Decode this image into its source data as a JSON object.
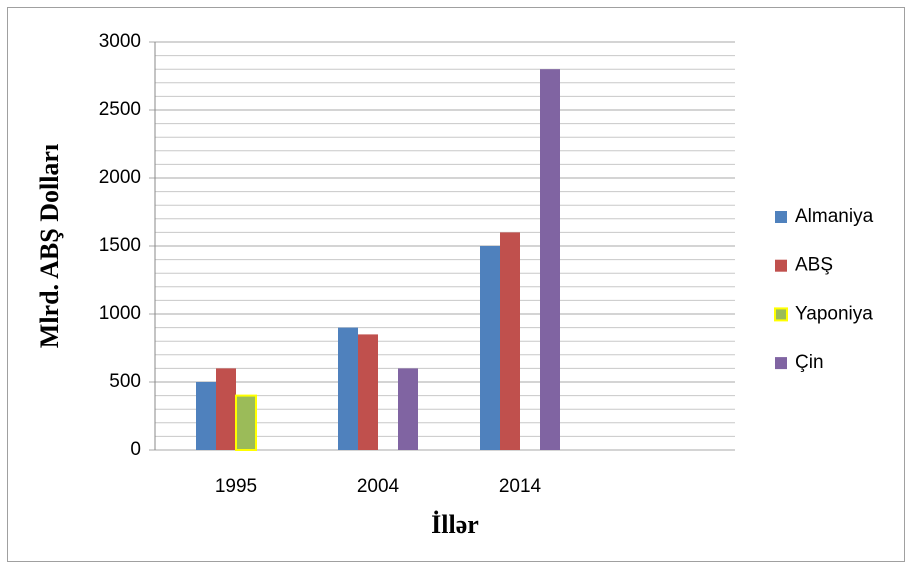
{
  "chart_data": {
    "type": "bar",
    "categories": [
      "1995",
      "2004",
      "2014",
      null
    ],
    "series": [
      {
        "name": "Almaniya",
        "color": "#4f81bd",
        "values": [
          500,
          900,
          1500,
          null
        ]
      },
      {
        "name": "ABŞ",
        "color": "#c0504d",
        "values": [
          600,
          850,
          1600,
          null
        ]
      },
      {
        "name": "Yaponiya",
        "color": "#9bbb59",
        "edgecolor": "#ffff00",
        "values": [
          400,
          null,
          null,
          null
        ]
      },
      {
        "name": "Çin",
        "color": "#8064a2",
        "values": [
          null,
          600,
          2800,
          null
        ]
      }
    ],
    "ylim": [
      0,
      3000
    ],
    "yticks": [
      0,
      500,
      1000,
      1500,
      2000,
      2500,
      3000
    ],
    "minor_yticks": [
      100,
      200,
      300,
      400,
      600,
      700,
      800,
      900,
      1100,
      1200,
      1300,
      1400,
      1600,
      1700,
      1800,
      1900,
      2100,
      2200,
      2300,
      2400,
      2600,
      2700,
      2800,
      2900
    ],
    "grid": true,
    "xlabel": "İllər",
    "ylabel": "Mlrd. ABŞ Dolları",
    "legend": "right"
  }
}
